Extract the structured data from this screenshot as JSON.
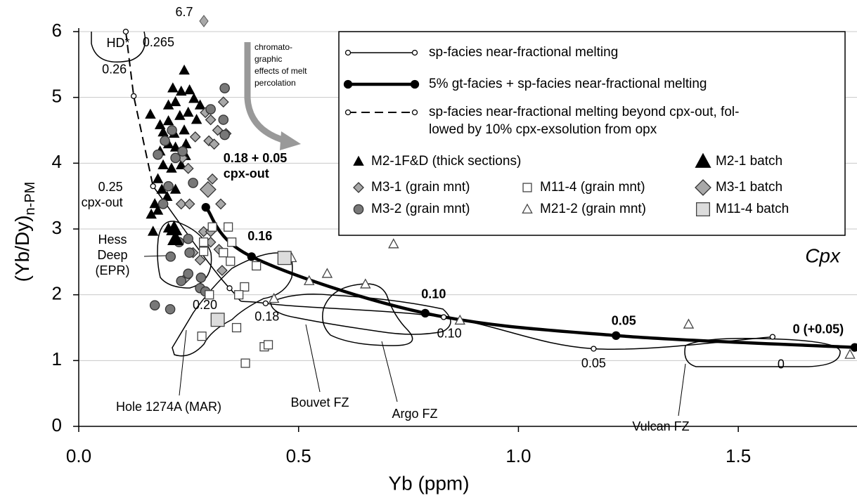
{
  "chart_data": {
    "type": "scatter",
    "xlabel": "Yb (ppm)",
    "ylabel": "(Yb/Dy)",
    "ylabel_subscript": "n-PM",
    "xlim": [
      0,
      1.77
    ],
    "ylim": [
      0,
      6
    ],
    "xticks": [
      {
        "value": 0,
        "label": "0.0"
      },
      0.5,
      {
        "value": 1,
        "label": "1.0"
      },
      1.5
    ],
    "yticks": [
      0,
      1,
      2,
      3,
      4,
      5,
      6
    ],
    "grid": true,
    "series": [
      {
        "name": "M2-1F&D (thick sections)",
        "mode": "markers",
        "marker": "triangle",
        "size": "small",
        "color": "#000000",
        "x": [
          0.24,
          0.163,
          0.185,
          0.204,
          0.22,
          0.214,
          0.233,
          0.252,
          0.262,
          0.249,
          0.23,
          0.204,
          0.192,
          0.217,
          0.24,
          0.276,
          0.268,
          0.204,
          0.185,
          0.22,
          0.244,
          0.192,
          0.18,
          0.211,
          0.233,
          0.189,
          0.201,
          0.22,
          0.165,
          0.18,
          0.204,
          0.169,
          0.173,
          0.243
        ],
        "y": [
          5.41,
          4.74,
          4.58,
          4.88,
          4.93,
          5.14,
          5.09,
          5.11,
          4.98,
          4.77,
          4.72,
          4.64,
          4.47,
          4.45,
          4.5,
          4.88,
          4.66,
          4.29,
          4.18,
          4.24,
          4.29,
          3.97,
          3.76,
          3.92,
          3.97,
          3.6,
          3.49,
          3.6,
          3.22,
          3.28,
          3.01,
          2.96,
          3.38,
          4.11
        ]
      },
      {
        "name": "M3-1 (grain mnt)",
        "mode": "markers",
        "marker": "diamond",
        "size": "small",
        "color": "#a8a8a8",
        "x": [
          0.329,
          0.288,
          0.3,
          0.316,
          0.296,
          0.308,
          0.335,
          0.265,
          0.249,
          0.236,
          0.304,
          0.323,
          0.284,
          0.3,
          0.26,
          0.276,
          0.326,
          0.244,
          0.319,
          0.233,
          0.3,
          0.252
        ],
        "y": [
          4.93,
          4.77,
          4.66,
          4.5,
          4.34,
          4.29,
          4.45,
          4.4,
          3.92,
          4.08,
          3.76,
          3.38,
          2.96,
          2.8,
          2.64,
          2.53,
          2.37,
          2.26,
          2.69,
          3.38,
          2.96,
          3.38
        ]
      },
      {
        "name": "M3-2 (grain mnt)",
        "mode": "markers",
        "marker": "circle",
        "size": "small",
        "color": "#787878",
        "x": [
          0.332,
          0.3,
          0.329,
          0.332,
          0.18,
          0.196,
          0.212,
          0.22,
          0.236,
          0.204,
          0.26,
          0.192,
          0.249,
          0.228,
          0.252,
          0.209,
          0.249,
          0.278,
          0.233,
          0.276,
          0.288,
          0.173,
          0.208
        ],
        "y": [
          5.14,
          4.82,
          4.66,
          4.43,
          4.13,
          4.34,
          4.5,
          4.08,
          4.18,
          3.65,
          3.7,
          3.38,
          2.85,
          2.8,
          2.64,
          2.58,
          2.32,
          2.26,
          2.21,
          2.1,
          2.05,
          1.84,
          1.78
        ]
      },
      {
        "name": "M11-4 (grain mnt)",
        "mode": "markers",
        "marker": "square",
        "size": "small",
        "color": "#ffffff",
        "x": [
          0.304,
          0.34,
          0.284,
          0.284,
          0.329,
          0.348,
          0.345,
          0.404,
          0.377,
          0.364,
          0.297,
          0.28,
          0.359,
          0.422,
          0.431,
          0.379
        ],
        "y": [
          3.03,
          3.03,
          2.8,
          2.66,
          2.64,
          2.8,
          2.51,
          2.44,
          2.12,
          2.0,
          2.0,
          1.37,
          1.5,
          1.21,
          1.24,
          0.96
        ]
      },
      {
        "name": "M21-2 (grain mnt)",
        "mode": "markers",
        "marker": "triangle",
        "size": "small",
        "color": "#ffffff",
        "x": [
          0.484,
          0.524,
          0.565,
          0.652,
          0.716,
          0.867,
          1.387,
          1.754,
          0.444
        ],
        "y": [
          2.56,
          2.21,
          2.32,
          2.16,
          2.77,
          1.61,
          1.55,
          1.09,
          1.94
        ]
      },
      {
        "name": "M2-1 batch",
        "mode": "markers",
        "marker": "triangle",
        "size": "large",
        "color": "#000000",
        "x": [
          0.217,
          0.22
        ],
        "y": [
          3.0,
          2.85
        ]
      },
      {
        "name": "M3-1 batch",
        "mode": "markers",
        "marker": "diamond",
        "size": "large",
        "color": "#a8a8a8",
        "x": [
          0.294
        ],
        "y": [
          3.6
        ]
      },
      {
        "name": "M11-4 batch",
        "mode": "markers",
        "marker": "square",
        "size": "large",
        "color": "#dcdcdc",
        "x": [
          0.316,
          0.468
        ],
        "y": [
          1.62,
          2.56
        ]
      },
      {
        "name": "sp-facies near-fractional melting",
        "mode": "line",
        "style": "thin",
        "color": "#000000",
        "x": [
          0.169,
          0.343,
          0.425,
          0.83,
          1.171,
          1.578
        ],
        "y": [
          3.65,
          2.1,
          1.87,
          1.66,
          1.18,
          1.36
        ],
        "point_labels": [
          [
            "0.25",
            "cpx-out"
          ],
          "0.20",
          "0.18",
          "0.10",
          "0.05",
          "0"
        ]
      },
      {
        "name": "5% gt-facies + sp-facies near-fractional melting",
        "mode": "line",
        "style": "thick",
        "color": "#000000",
        "x": [
          0.289,
          0.393,
          0.788,
          1.222,
          1.765
        ],
        "y": [
          3.33,
          2.58,
          1.72,
          1.38,
          1.2
        ],
        "point_labels": [
          [
            "0.18 + 0.05",
            "cpx-out"
          ],
          "0.16",
          "0.10",
          "0.05",
          "0 (+0.05)"
        ]
      },
      {
        "name": [
          "sp-facies near-fractional melting beyond cpx-out, fol-",
          "lowed by 10% cpx-exsolution from opx"
        ],
        "mode": "line",
        "style": "dashed",
        "color": "#000000",
        "x": [
          0.107,
          0.125,
          0.169
        ],
        "y": [
          6.0,
          5.02,
          3.65
        ],
        "point_labels": [
          "0.265",
          "0.26",
          null
        ]
      }
    ],
    "off_scale_label": "6.7",
    "phase_label": "Cpx",
    "arrow_label": [
      "chromato-",
      "graphic",
      "effects of melt",
      "percolation"
    ],
    "fields": {
      "hd": "HD*",
      "hess": [
        "Hess",
        "Deep",
        "(EPR)"
      ],
      "hole": "Hole 1274A (MAR)",
      "bouvet": "Bouvet FZ",
      "argo": "Argo FZ",
      "vulcan": "Vulcan FZ"
    }
  }
}
